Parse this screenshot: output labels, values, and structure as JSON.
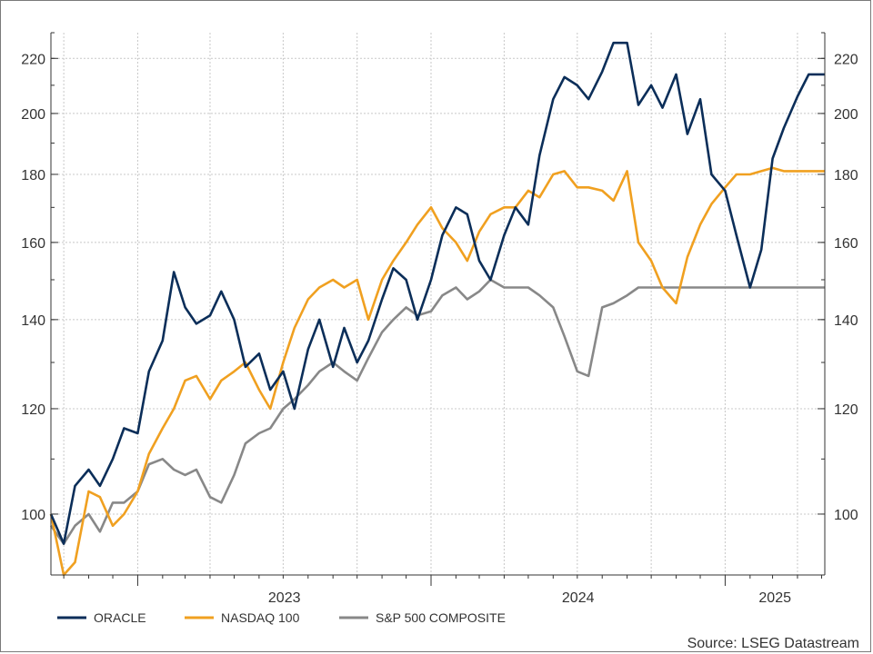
{
  "chart_data": {
    "type": "line",
    "scale_y": "log",
    "grid": true,
    "legend_placement": "bottom-left",
    "xlim": [
      "2022-09-15",
      "2025-05-05"
    ],
    "ylim": [
      90,
      230
    ],
    "x_ticks": [
      {
        "label": "2023",
        "date": "2023-01-01"
      },
      {
        "label": "2024",
        "date": "2024-01-01"
      },
      {
        "label": "2025",
        "date": "2025-01-01"
      }
    ],
    "y_ticks": [
      100,
      120,
      140,
      160,
      180,
      200,
      220
    ],
    "source": "Source: LSEG Datastream",
    "x": [
      "2022-09-15",
      "2022-10-01",
      "2022-10-15",
      "2022-11-01",
      "2022-11-15",
      "2022-12-01",
      "2022-12-15",
      "2023-01-01",
      "2023-01-15",
      "2023-02-01",
      "2023-02-15",
      "2023-03-01",
      "2023-03-15",
      "2023-04-01",
      "2023-04-15",
      "2023-05-01",
      "2023-05-15",
      "2023-06-01",
      "2023-06-15",
      "2023-07-01",
      "2023-07-15",
      "2023-08-01",
      "2023-08-15",
      "2023-09-01",
      "2023-09-15",
      "2023-10-01",
      "2023-10-15",
      "2023-11-01",
      "2023-11-15",
      "2023-12-01",
      "2023-12-15",
      "2024-01-01",
      "2024-01-15",
      "2024-02-01",
      "2024-02-15",
      "2024-03-01",
      "2024-03-15",
      "2024-04-01",
      "2024-04-15",
      "2024-05-01",
      "2024-05-15",
      "2024-06-01",
      "2024-06-15",
      "2024-07-01",
      "2024-07-15",
      "2024-08-01",
      "2024-08-15",
      "2024-09-01",
      "2024-09-15",
      "2024-10-01",
      "2024-10-15",
      "2024-11-01",
      "2024-11-15",
      "2024-12-01",
      "2024-12-15",
      "2025-01-01",
      "2025-01-15",
      "2025-02-01",
      "2025-02-15",
      "2025-03-01",
      "2025-03-15",
      "2025-04-01",
      "2025-04-15",
      "2025-05-01",
      "2025-05-05"
    ],
    "series": [
      {
        "name": "ORACLE",
        "color": "#0b2e59",
        "values": [
          100,
          95,
          105,
          108,
          105,
          110,
          116,
          115,
          128,
          135,
          152,
          143,
          139,
          141,
          147,
          140,
          129,
          132,
          124,
          128,
          120,
          133,
          140,
          129,
          138,
          130,
          135,
          145,
          153,
          150,
          140,
          150,
          162,
          170,
          168,
          155,
          150,
          162,
          170,
          165,
          186,
          205,
          213,
          210,
          205,
          215,
          226,
          226,
          203,
          210,
          202,
          214,
          193,
          205,
          180,
          175,
          162,
          148,
          158,
          185,
          195,
          206,
          214,
          214,
          214
        ]
      },
      {
        "name": "NASDAQ 100",
        "color": "#f0a020",
        "values": [
          100,
          90,
          92,
          104,
          103,
          98,
          100,
          104,
          111,
          116,
          120,
          126,
          127,
          122,
          126,
          128,
          130,
          124,
          120,
          130,
          138,
          145,
          148,
          150,
          148,
          150,
          140,
          150,
          155,
          160,
          165,
          170,
          164,
          160,
          155,
          163,
          168,
          170,
          170,
          175,
          173,
          180,
          181,
          176,
          176,
          175,
          172,
          181,
          160,
          155,
          148,
          144,
          156,
          165,
          171,
          176,
          180,
          180,
          181,
          182,
          181,
          181,
          181,
          181,
          181
        ]
      },
      {
        "name": "S&P 500 COMPOSITE",
        "color": "#888888",
        "values": [
          98,
          95,
          98,
          100,
          97,
          102,
          102,
          104,
          109,
          110,
          108,
          107,
          108,
          103,
          102,
          107,
          113,
          115,
          116,
          120,
          122,
          125,
          128,
          130,
          128,
          126,
          131,
          137,
          140,
          143,
          141,
          142,
          146,
          148,
          145,
          147,
          150,
          148,
          148,
          148,
          146,
          143,
          136,
          128,
          127,
          143,
          144,
          146,
          148,
          148,
          148,
          148,
          148,
          148,
          148,
          148,
          148,
          148,
          148,
          148,
          148,
          148,
          148,
          148,
          148
        ]
      }
    ]
  }
}
